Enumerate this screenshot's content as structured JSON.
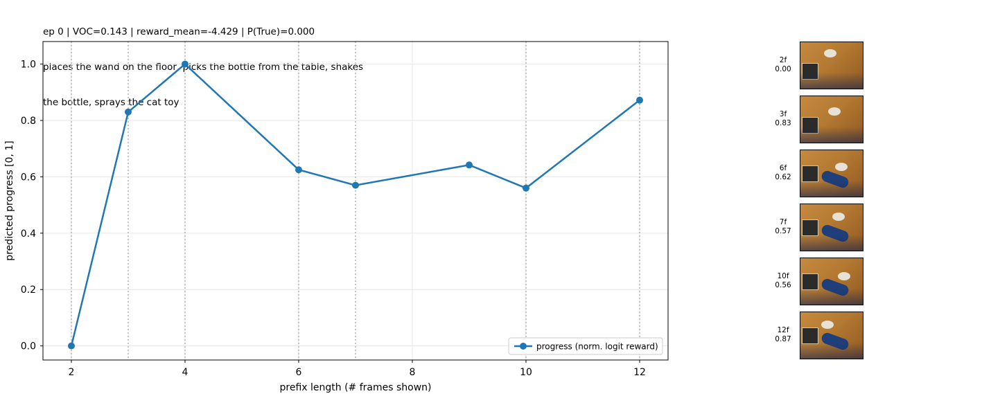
{
  "title_lines": [
    "ep 0 | VOC=0.143 | reward_mean=-4.429 | P(True)=0.000",
    "places the wand on the floor, picks the bottle from the table, shakes",
    "the bottle, sprays the cat toy"
  ],
  "chart_data": {
    "type": "line",
    "xlabel": "prefix length (# frames shown)",
    "ylabel": "predicted progress  [0, 1]",
    "xlim": [
      1.5,
      12.5
    ],
    "ylim": [
      -0.05,
      1.08
    ],
    "xticks": [
      2,
      4,
      6,
      8,
      10,
      12
    ],
    "yticks": [
      0.0,
      0.2,
      0.4,
      0.6,
      0.8,
      1.0
    ],
    "grid": true,
    "vlines": [
      2,
      3,
      4,
      6,
      7,
      10,
      12
    ],
    "legend_position": "lower-right",
    "series": [
      {
        "name": "progress (norm. logit reward)",
        "color": "#1f77b4",
        "x": [
          2,
          3,
          4,
          6,
          7,
          9,
          10,
          12
        ],
        "y": [
          0.0,
          0.83,
          1.0,
          0.625,
          0.57,
          0.642,
          0.56,
          0.872
        ]
      }
    ]
  },
  "thumbnails": [
    {
      "frames": "2f",
      "score": "0.00"
    },
    {
      "frames": "3f",
      "score": "0.83"
    },
    {
      "frames": "6f",
      "score": "0.62"
    },
    {
      "frames": "7f",
      "score": "0.57"
    },
    {
      "frames": "10f",
      "score": "0.56"
    },
    {
      "frames": "12f",
      "score": "0.87"
    }
  ]
}
